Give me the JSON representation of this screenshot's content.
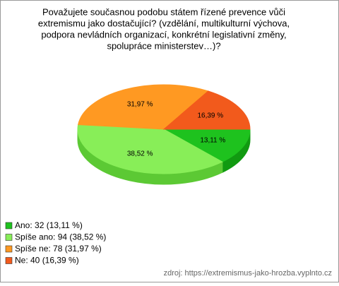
{
  "chart_data": {
    "type": "pie",
    "title": [
      "Považujete současnou podobu státem řízené prevence vůči",
      "extremismu jako dostačující? (vzdělání, multikulturní výchova,",
      "podpora nevládních organizací, konkrétní legislativní změny,",
      "spolupráce ministerstev…)?"
    ],
    "categories": [
      "Ano",
      "Spíše ano",
      "Spíše ne",
      "Ne"
    ],
    "values": [
      13.11,
      38.52,
      31.97,
      16.39
    ],
    "value_labels": [
      "13,11 %",
      "38,52 %",
      "31,97 %",
      "16,39 %"
    ],
    "legend_labels": [
      "Ano: 32 (13,11 %)",
      "Spíše ano: 94 (38,52 %)",
      "Spíše ne: 78 (31,97 %)",
      "Ne: 40 (16,39 %)"
    ],
    "colors": [
      "#1ec21e",
      "#88ee58",
      "#ff9922",
      "#f25a1c"
    ],
    "side_colors": [
      "#119a11",
      "#5cc934",
      "#d0741a",
      "#c44412"
    ],
    "source": "zdroj: https://extremismus-jako-hrozba.vyplnto.cz"
  }
}
